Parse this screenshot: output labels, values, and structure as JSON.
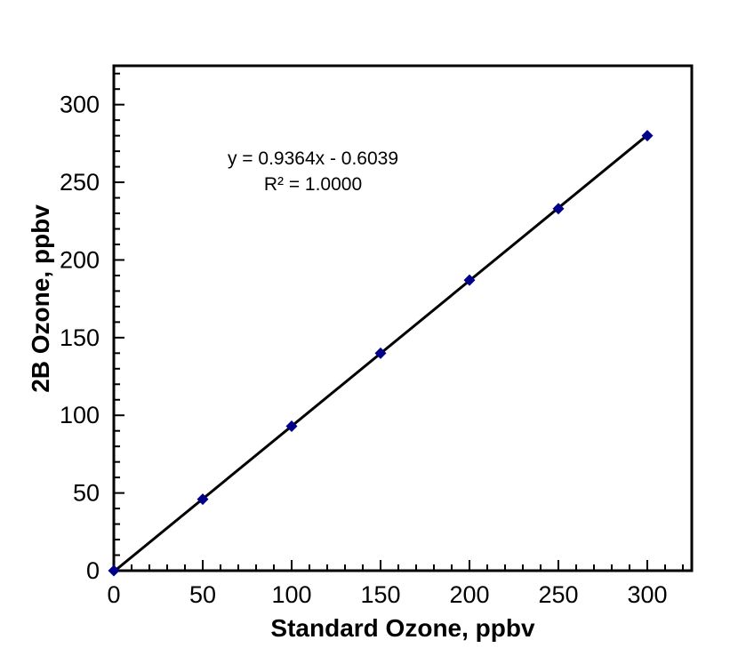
{
  "chart_data": {
    "type": "scatter",
    "title": "",
    "xlabel": "Standard Ozone, ppbv",
    "ylabel": "2B Ozone, ppbv",
    "x": [
      0,
      50,
      100,
      150,
      200,
      250,
      300
    ],
    "y": [
      0,
      46,
      93,
      140,
      187,
      233,
      280
    ],
    "trendline": {
      "slope": 0.9364,
      "intercept": -0.6039,
      "r2": 1.0,
      "x_start": 0,
      "x_end": 300
    },
    "annotation": {
      "equation": "y = 0.9364x - 0.6039",
      "r_squared": "R² = 1.0000"
    },
    "x_ticks": [
      0,
      50,
      100,
      150,
      200,
      250,
      300
    ],
    "y_ticks": [
      0,
      50,
      100,
      150,
      200,
      250,
      300
    ],
    "xlim": [
      0,
      325
    ],
    "ylim": [
      0,
      325
    ],
    "minor_tick_step": 10,
    "major_tick_step": 50,
    "grid": false,
    "legend": false,
    "marker_shape": "diamond",
    "colors": {
      "marker": "#00008B",
      "line": "#000000",
      "axis": "#000000",
      "text": "#000000",
      "background": "#FFFFFF"
    }
  }
}
